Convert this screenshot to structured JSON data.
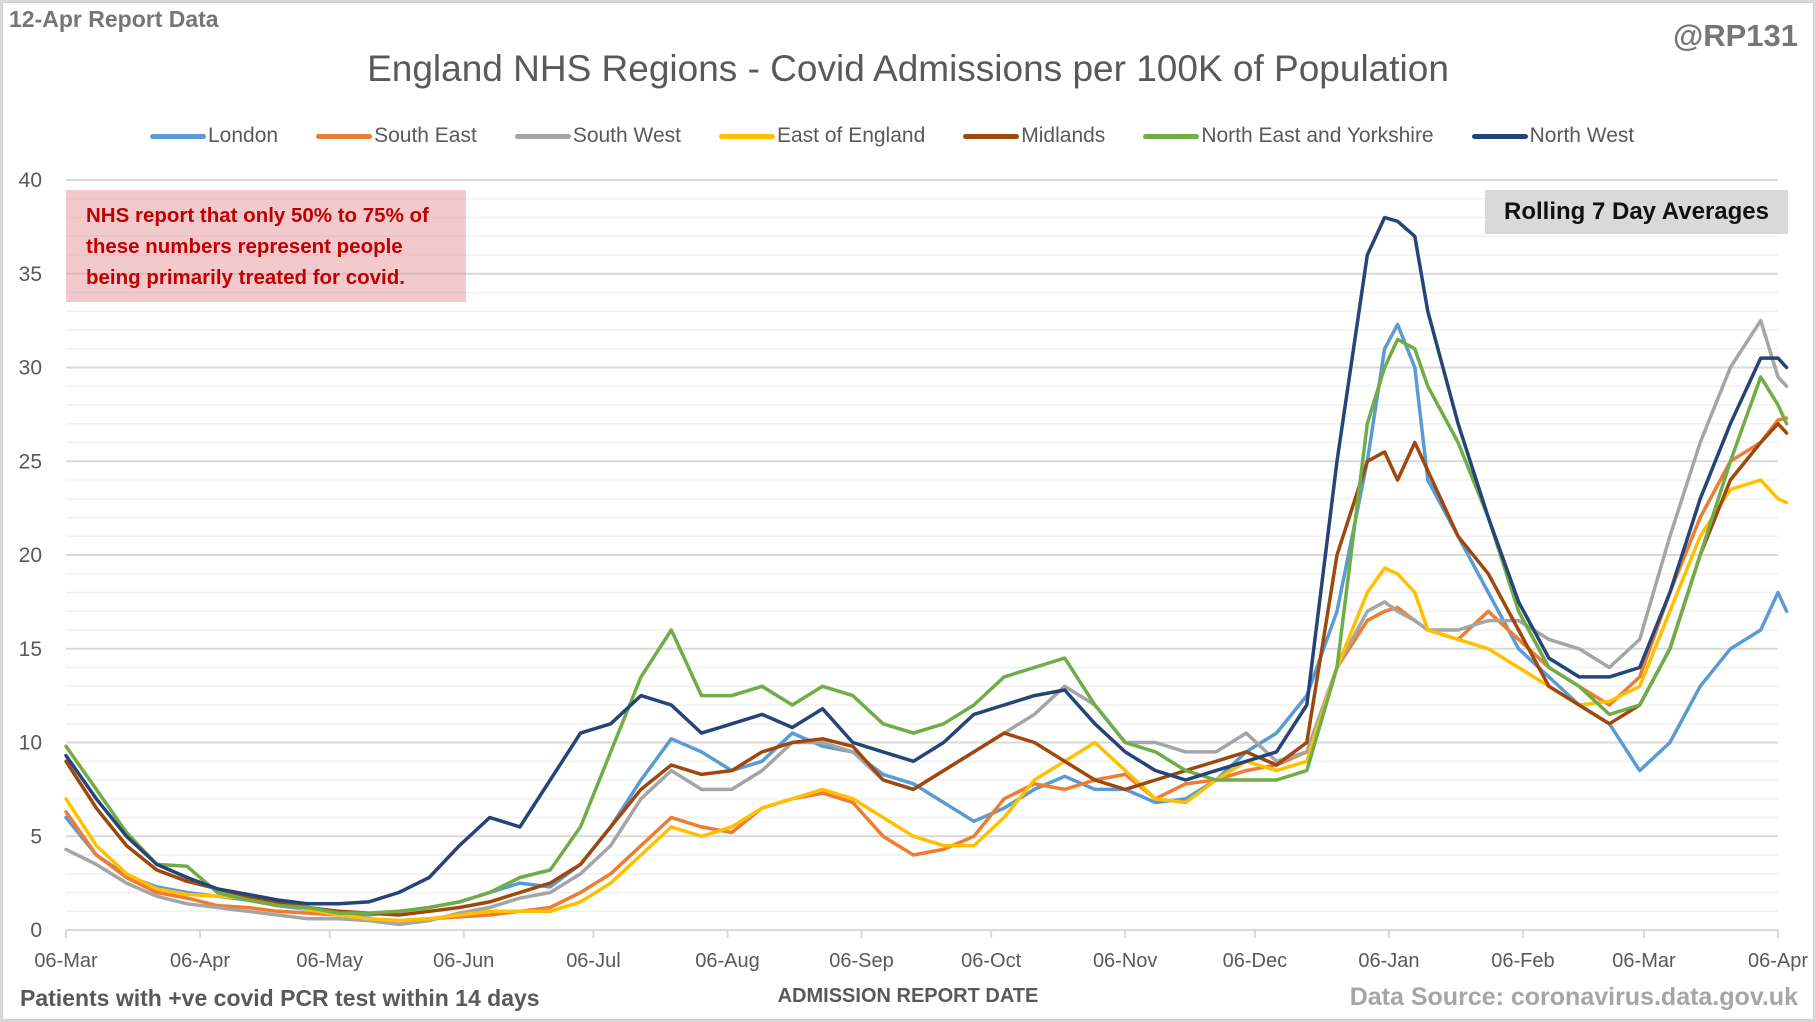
{
  "header": {
    "report_date": "12-Apr Report Data",
    "handle": "@RP131",
    "title": "England NHS Regions - Covid Admissions per 100K of Population"
  },
  "note": {
    "lines": [
      "NHS report that only 50% to 75% of",
      "these numbers represent people",
      "being primarily treated for covid."
    ],
    "text_color": "#c00000"
  },
  "badge": "Rolling 7 Day Averages",
  "footer": {
    "left": "Patients with +ve covid PCR test within 14 days",
    "source": "Data Source: coronavirus.data.gov.uk"
  },
  "chart_data": {
    "type": "line",
    "title": "England NHS Regions - Covid Admissions per 100K of Population",
    "xlabel": "ADMISSION REPORT DATE",
    "ylabel": "",
    "ylim": [
      0,
      40
    ],
    "yticks": [
      0,
      5,
      10,
      15,
      20,
      25,
      30,
      35,
      40
    ],
    "grid": "major every 5, minor every 1",
    "legend_position": "top",
    "x_start": "06-Mar",
    "x_unit": "days since 06-Mar",
    "xlim": [
      0,
      396
    ],
    "xticks": [
      {
        "label": "06-Mar",
        "day": 0
      },
      {
        "label": "06-Apr",
        "day": 31
      },
      {
        "label": "06-May",
        "day": 61
      },
      {
        "label": "06-Jun",
        "day": 92
      },
      {
        "label": "06-Jul",
        "day": 122
      },
      {
        "label": "06-Aug",
        "day": 153
      },
      {
        "label": "06-Sep",
        "day": 184
      },
      {
        "label": "06-Oct",
        "day": 214
      },
      {
        "label": "06-Nov",
        "day": 245
      },
      {
        "label": "06-Dec",
        "day": 275
      },
      {
        "label": "06-Jan",
        "day": 306
      },
      {
        "label": "06-Feb",
        "day": 337
      },
      {
        "label": "06-Mar",
        "day": 365
      },
      {
        "label": "06-Apr",
        "day": 396
      }
    ],
    "x": [
      0,
      7,
      14,
      21,
      28,
      35,
      42,
      49,
      56,
      63,
      70,
      77,
      84,
      91,
      98,
      105,
      112,
      119,
      126,
      133,
      140,
      147,
      154,
      161,
      168,
      175,
      182,
      189,
      196,
      203,
      210,
      217,
      224,
      231,
      238,
      245,
      252,
      259,
      266,
      273,
      280,
      287,
      294,
      301,
      305,
      308,
      312,
      315,
      322,
      329,
      336,
      343,
      350,
      357,
      364,
      371,
      378,
      385,
      392,
      396,
      398
    ],
    "series": [
      {
        "name": "London",
        "color": "#5b9bd5",
        "values": [
          6.0,
          4.0,
          2.9,
          2.3,
          2.0,
          1.8,
          1.6,
          1.3,
          1.1,
          0.9,
          0.8,
          1.0,
          1.2,
          1.5,
          2.0,
          2.5,
          2.3,
          3.5,
          5.5,
          8.0,
          10.2,
          9.5,
          8.5,
          9.0,
          10.5,
          9.8,
          9.5,
          8.3,
          7.8,
          6.8,
          5.8,
          6.5,
          7.5,
          8.2,
          7.5,
          7.5,
          6.8,
          7.0,
          8.0,
          9.5,
          10.5,
          12.5,
          17.0,
          25.0,
          31.0,
          32.3,
          30.0,
          24.0,
          21.0,
          18.0,
          15.0,
          13.5,
          12.0,
          11.0,
          8.5,
          10.0,
          13.0,
          15.0,
          16.0,
          18.0,
          17.0
        ]
      },
      {
        "name": "South East",
        "color": "#ed7d31",
        "values": [
          6.3,
          4.0,
          2.8,
          2.0,
          1.7,
          1.3,
          1.2,
          1.0,
          0.9,
          0.8,
          0.6,
          0.5,
          0.6,
          0.7,
          0.8,
          1.0,
          1.2,
          2.0,
          3.0,
          4.5,
          6.0,
          5.5,
          5.2,
          6.5,
          7.0,
          7.3,
          6.8,
          5.0,
          4.0,
          4.3,
          5.0,
          7.0,
          7.8,
          7.5,
          8.0,
          8.3,
          7.0,
          7.8,
          8.0,
          8.5,
          8.8,
          9.5,
          14.0,
          16.5,
          17.0,
          17.2,
          16.5,
          16.0,
          15.5,
          17.0,
          15.5,
          14.0,
          13.0,
          12.0,
          13.5,
          18.0,
          22.0,
          25.0,
          26.0,
          27.2,
          27.3
        ]
      },
      {
        "name": "South West",
        "color": "#a5a5a5",
        "values": [
          4.3,
          3.5,
          2.5,
          1.8,
          1.4,
          1.2,
          1.0,
          0.8,
          0.6,
          0.6,
          0.5,
          0.3,
          0.5,
          0.9,
          1.2,
          1.7,
          2.0,
          3.0,
          4.5,
          7.0,
          8.5,
          7.5,
          7.5,
          8.5,
          10.0,
          10.0,
          9.5,
          8.0,
          7.5,
          8.5,
          9.5,
          10.5,
          11.5,
          13.0,
          12.0,
          10.0,
          10.0,
          9.5,
          9.5,
          10.5,
          9.0,
          9.5,
          14.0,
          17.0,
          17.5,
          17.0,
          16.5,
          16.0,
          16.0,
          16.5,
          16.5,
          15.5,
          15.0,
          14.0,
          15.5,
          21.0,
          26.0,
          30.0,
          32.5,
          29.5,
          29.0
        ]
      },
      {
        "name": "East of England",
        "color": "#ffc000",
        "values": [
          7.0,
          4.5,
          3.0,
          2.2,
          1.9,
          1.8,
          1.7,
          1.5,
          1.1,
          0.8,
          0.6,
          0.5,
          0.6,
          0.8,
          1.0,
          1.0,
          1.0,
          1.5,
          2.5,
          4.0,
          5.5,
          5.0,
          5.5,
          6.5,
          7.0,
          7.5,
          7.0,
          6.0,
          5.0,
          4.5,
          4.5,
          6.0,
          8.0,
          9.0,
          10.0,
          8.5,
          7.0,
          6.8,
          8.0,
          9.0,
          8.5,
          9.0,
          14.0,
          18.0,
          19.3,
          19.0,
          18.0,
          16.0,
          15.5,
          15.0,
          14.0,
          13.0,
          12.0,
          12.2,
          13.0,
          17.0,
          21.0,
          23.5,
          24.0,
          23.0,
          22.8
        ]
      },
      {
        "name": "Midlands",
        "color": "#9e480e",
        "values": [
          9.0,
          6.5,
          4.5,
          3.2,
          2.6,
          2.2,
          1.8,
          1.5,
          1.2,
          1.0,
          0.9,
          0.8,
          1.0,
          1.2,
          1.5,
          2.0,
          2.5,
          3.5,
          5.5,
          7.5,
          8.8,
          8.3,
          8.5,
          9.5,
          10.0,
          10.2,
          9.8,
          8.0,
          7.5,
          8.5,
          9.5,
          10.5,
          10.0,
          9.0,
          8.0,
          7.5,
          8.0,
          8.5,
          9.0,
          9.5,
          8.8,
          10.0,
          20.0,
          25.0,
          25.5,
          24.0,
          26.0,
          24.5,
          21.0,
          19.0,
          16.0,
          13.0,
          12.0,
          11.0,
          12.0,
          15.0,
          20.0,
          24.0,
          26.0,
          27.0,
          26.5
        ]
      },
      {
        "name": "North East and Yorkshire",
        "color": "#70ad47",
        "values": [
          9.8,
          7.5,
          5.2,
          3.5,
          3.4,
          2.0,
          1.6,
          1.3,
          1.2,
          0.9,
          0.9,
          1.0,
          1.2,
          1.5,
          2.0,
          2.8,
          3.2,
          5.5,
          9.5,
          13.5,
          16.0,
          12.5,
          12.5,
          13.0,
          12.0,
          13.0,
          12.5,
          11.0,
          10.5,
          11.0,
          12.0,
          13.5,
          14.0,
          14.5,
          12.0,
          10.0,
          9.5,
          8.5,
          8.0,
          8.0,
          8.0,
          8.5,
          14.0,
          27.0,
          30.0,
          31.5,
          31.0,
          29.0,
          26.0,
          22.0,
          17.0,
          14.0,
          13.0,
          11.5,
          12.0,
          15.0,
          20.0,
          25.0,
          29.5,
          28.0,
          27.0
        ]
      },
      {
        "name": "North West",
        "color": "#264478",
        "values": [
          9.3,
          7.0,
          5.0,
          3.5,
          2.8,
          2.2,
          1.9,
          1.6,
          1.4,
          1.4,
          1.5,
          2.0,
          2.8,
          4.5,
          6.0,
          5.5,
          8.0,
          10.5,
          11.0,
          12.5,
          12.0,
          10.5,
          11.0,
          11.5,
          10.8,
          11.8,
          10.0,
          9.5,
          9.0,
          10.0,
          11.5,
          12.0,
          12.5,
          12.8,
          11.0,
          9.5,
          8.5,
          8.0,
          8.5,
          9.0,
          9.5,
          12.0,
          25.0,
          36.0,
          38.0,
          37.8,
          37.0,
          33.0,
          27.0,
          22.0,
          17.5,
          14.5,
          13.5,
          13.5,
          14.0,
          18.0,
          23.0,
          27.0,
          30.5,
          30.5,
          30.0
        ]
      }
    ]
  }
}
